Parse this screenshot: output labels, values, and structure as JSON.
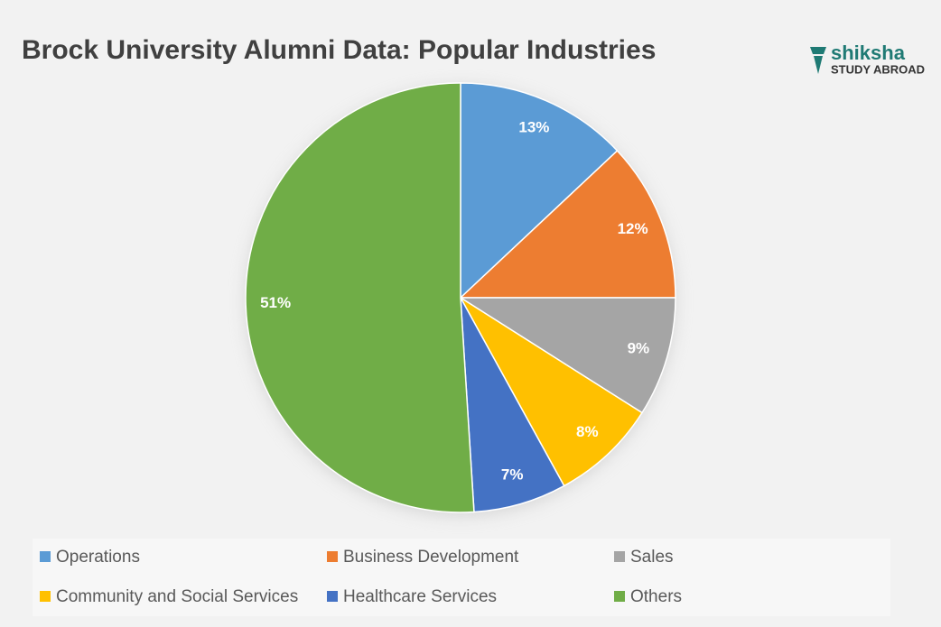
{
  "chart_data": {
    "type": "pie",
    "title": "Brock University Alumni Data: Popular Industries",
    "categories": [
      "Operations",
      "Business Development",
      "Sales",
      "Community and Social Services",
      "Healthcare Services",
      "Others"
    ],
    "values": [
      13,
      12,
      9,
      8,
      7,
      51
    ],
    "value_labels": [
      "13%",
      "12%",
      "9%",
      "8%",
      "7%",
      "51%"
    ],
    "colors": [
      "#5b9bd5",
      "#ed7d31",
      "#a5a5a5",
      "#ffc000",
      "#4472c4",
      "#70ad47"
    ],
    "legend": "bottom"
  },
  "logo": {
    "name": "shiksha",
    "tagline": "STUDY ABROAD"
  }
}
